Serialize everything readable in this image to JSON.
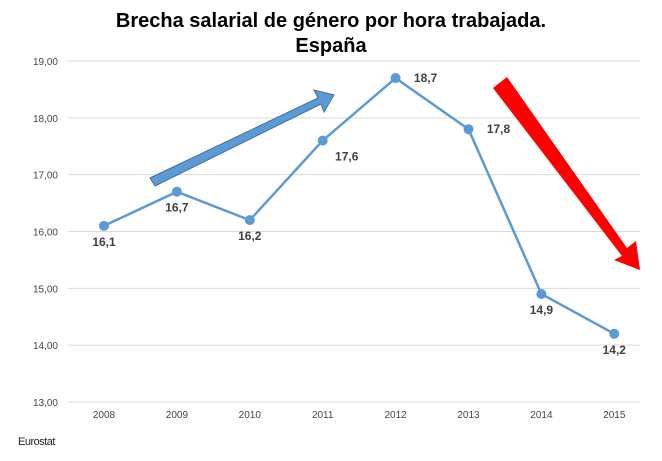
{
  "chart_data": {
    "type": "line",
    "title": "Brecha salarial de género por hora trabajada.",
    "subtitle": "España",
    "categories": [
      "2008",
      "2009",
      "2010",
      "2011",
      "2012",
      "2013",
      "2014",
      "2015"
    ],
    "series": [
      {
        "values": [
          16.1,
          16.7,
          16.2,
          17.6,
          18.7,
          17.8,
          14.9,
          14.2
        ],
        "color": "#5B9BD5"
      }
    ],
    "data_labels": [
      "16,1",
      "16,7",
      "16,2",
      "17,6",
      "18,7",
      "17,8",
      "14,9",
      "14,2"
    ],
    "yticks": [
      "13,00",
      "14,00",
      "15,00",
      "16,00",
      "17,00",
      "18,00",
      "19,00"
    ],
    "ylim": [
      13,
      19
    ],
    "grid": true,
    "annotations": [
      {
        "shape": "arrow-up",
        "color": "#5B9BD5"
      },
      {
        "shape": "arrow-down",
        "color": "#FF0000"
      }
    ]
  },
  "source": "Eurostat"
}
